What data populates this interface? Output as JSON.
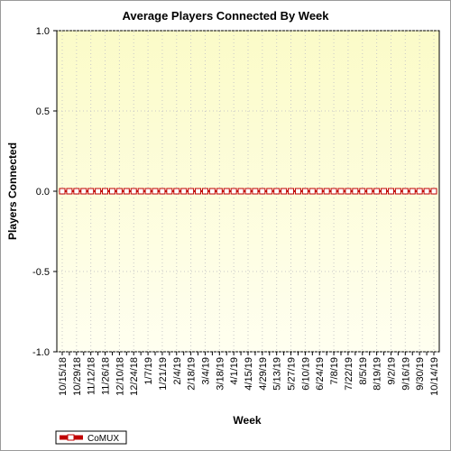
{
  "chart_data": {
    "type": "line",
    "title": "Average Players Connected By Week",
    "xlabel": "Week",
    "ylabel": "Players Connected",
    "ylim": [
      -1.0,
      1.0
    ],
    "yticks": [
      "1.0",
      "0.5",
      "0.0",
      "-0.5",
      "-1.0"
    ],
    "ytick_values": [
      1.0,
      0.5,
      0.0,
      -0.5,
      -1.0
    ],
    "x_labels": [
      "10/15/18",
      "10/29/18",
      "11/12/18",
      "11/26/18",
      "12/10/18",
      "12/24/18",
      "1/7/19",
      "1/21/19",
      "2/4/19",
      "2/18/19",
      "3/4/19",
      "3/18/19",
      "4/1/19",
      "4/15/19",
      "4/29/19",
      "5/13/19",
      "5/27/19",
      "6/10/19",
      "6/24/19",
      "7/8/19",
      "7/22/19",
      "8/5/19",
      "8/19/19",
      "9/2/19",
      "9/16/19",
      "9/30/19",
      "10/14/19"
    ],
    "points_count": 53,
    "series": [
      {
        "name": "CoMUX",
        "color": "#c00000",
        "value": 0
      }
    ],
    "plot_bg_top": "#fbfbc8",
    "plot_bg_bottom": "#fffff0",
    "grid": true,
    "legend": "bottom-left"
  }
}
